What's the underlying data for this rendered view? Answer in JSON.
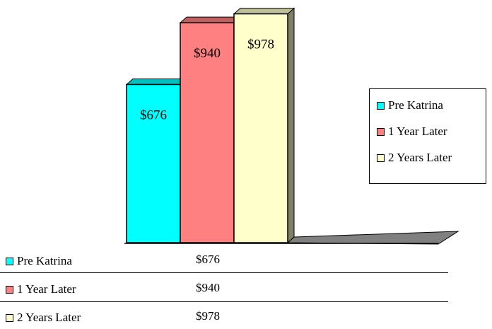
{
  "chart_data": {
    "type": "bar",
    "categories": [
      "Pre Katrina",
      "1 Year Later",
      "2 Years Later"
    ],
    "series": [
      {
        "name": "Pre Katrina",
        "value": 676,
        "label": "$676",
        "color": "#00FFFF"
      },
      {
        "name": "1 Year Later",
        "value": 940,
        "label": "$940",
        "color": "#FF8080"
      },
      {
        "name": "2 Years Later",
        "value": 978,
        "label": "$978",
        "color": "#FFFFCC"
      }
    ],
    "ylim": [
      0,
      1000
    ],
    "grid": false,
    "legend_position": "right",
    "three_d": true,
    "floor_color": "#808080"
  },
  "legend": {
    "items": [
      "Pre Katrina",
      "1 Year Later",
      "2 Years Later"
    ]
  },
  "data_table": {
    "rows": [
      {
        "name": "Pre Katrina",
        "value": "$676"
      },
      {
        "name": "1 Year Later",
        "value": "$940"
      },
      {
        "name": "2 Years Later",
        "value": "$978"
      }
    ]
  }
}
